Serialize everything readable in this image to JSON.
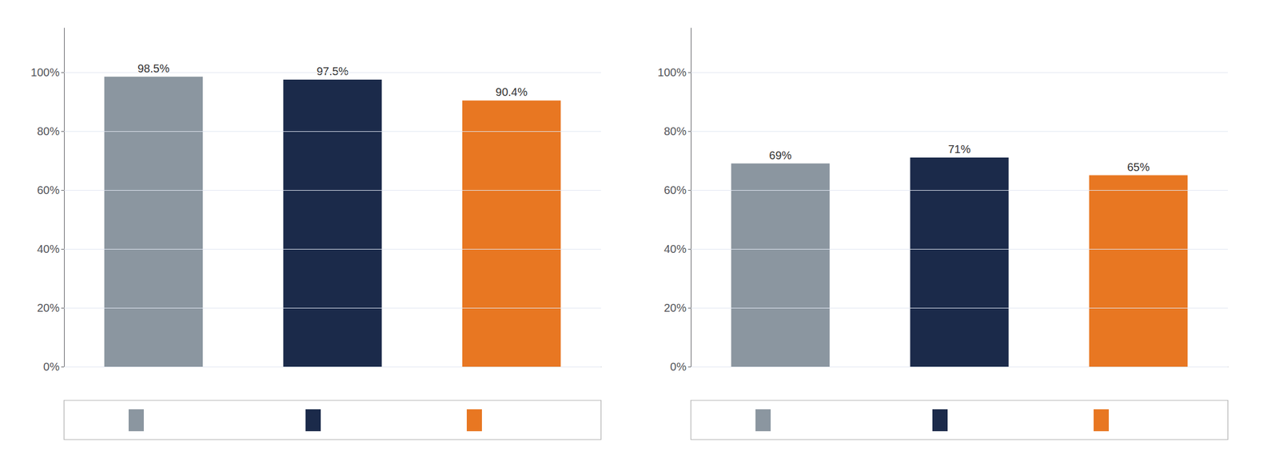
{
  "chart_data": [
    {
      "type": "bar",
      "categories": [
        null,
        null,
        null
      ],
      "values": [
        0.985,
        0.975,
        0.904
      ],
      "value_labels": [
        "98.5%",
        "97.5%",
        "90.4%"
      ],
      "colors": [
        "#8b96a0",
        "#1b2a4a",
        "#e87722"
      ],
      "ylim": [
        0,
        1.15
      ],
      "yticks": [
        {
          "value": 0,
          "label": "0%"
        },
        {
          "value": 0.2,
          "label": "20%"
        },
        {
          "value": 0.4,
          "label": "40%"
        },
        {
          "value": 0.6,
          "label": "60%"
        },
        {
          "value": 0.8,
          "label": "80%"
        },
        {
          "value": 1.0,
          "label": "100%"
        }
      ],
      "grid": true,
      "data_labels": true
    },
    {
      "type": "bar",
      "categories": [
        null,
        null,
        null
      ],
      "values": [
        0.69,
        0.71,
        0.65
      ],
      "value_labels": [
        "69%",
        "71%",
        "65%"
      ],
      "colors": [
        "#8b96a0",
        "#1b2a4a",
        "#e87722"
      ],
      "ylim": [
        0,
        1.15
      ],
      "yticks": [
        {
          "value": 0,
          "label": "0%"
        },
        {
          "value": 0.2,
          "label": "20%"
        },
        {
          "value": 0.4,
          "label": "40%"
        },
        {
          "value": 0.6,
          "label": "60%"
        },
        {
          "value": 0.8,
          "label": "80%"
        },
        {
          "value": 1.0,
          "label": "100%"
        }
      ],
      "grid": true,
      "data_labels": true
    }
  ]
}
